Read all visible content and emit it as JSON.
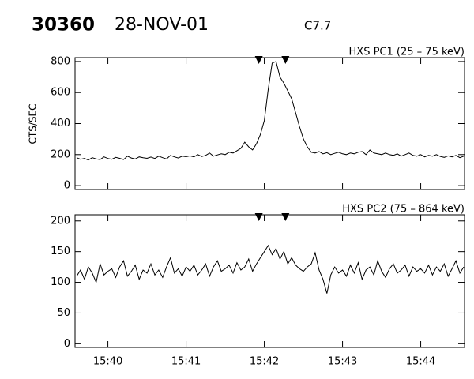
{
  "chart_data": [
    {
      "type": "line",
      "title": "30360",
      "subtitle": "28-NOV-01",
      "annotation": "C7.7",
      "label": "HXS PC1 (25 – 75 keV)",
      "ylabel": "CTS/SEC",
      "color": "#000000",
      "xlim": [
        39.58,
        44.56
      ],
      "ylim": [
        -25,
        825
      ],
      "yticks": [
        0,
        200,
        400,
        600,
        800
      ],
      "markers": [
        41.93,
        42.27
      ],
      "x": [
        39.6,
        39.65,
        39.7,
        39.75,
        39.8,
        39.85,
        39.9,
        39.95,
        40.0,
        40.05,
        40.1,
        40.15,
        40.2,
        40.25,
        40.3,
        40.35,
        40.4,
        40.45,
        40.5,
        40.55,
        40.6,
        40.65,
        40.7,
        40.75,
        40.8,
        40.85,
        40.9,
        40.95,
        41.0,
        41.05,
        41.1,
        41.15,
        41.2,
        41.25,
        41.3,
        41.35,
        41.4,
        41.45,
        41.5,
        41.55,
        41.6,
        41.65,
        41.7,
        41.75,
        41.8,
        41.85,
        41.9,
        41.95,
        42.0,
        42.05,
        42.1,
        42.15,
        42.2,
        42.25,
        42.3,
        42.35,
        42.4,
        42.45,
        42.5,
        42.55,
        42.6,
        42.65,
        42.7,
        42.75,
        42.8,
        42.85,
        42.9,
        42.95,
        43.0,
        43.05,
        43.1,
        43.15,
        43.2,
        43.25,
        43.3,
        43.35,
        43.4,
        43.45,
        43.5,
        43.55,
        43.6,
        43.65,
        43.7,
        43.75,
        43.8,
        43.85,
        43.9,
        43.95,
        44.0,
        44.05,
        44.1,
        44.15,
        44.2,
        44.25,
        44.3,
        44.35,
        44.4,
        44.45,
        44.5,
        44.55
      ],
      "values": [
        180,
        170,
        175,
        165,
        180,
        172,
        168,
        185,
        175,
        170,
        182,
        176,
        168,
        190,
        178,
        172,
        185,
        180,
        176,
        184,
        175,
        190,
        180,
        172,
        195,
        185,
        178,
        190,
        186,
        192,
        185,
        200,
        188,
        195,
        210,
        190,
        198,
        205,
        200,
        215,
        210,
        225,
        240,
        280,
        250,
        230,
        270,
        330,
        420,
        620,
        790,
        800,
        700,
        660,
        610,
        560,
        470,
        380,
        300,
        250,
        215,
        210,
        220,
        205,
        212,
        200,
        208,
        215,
        205,
        200,
        210,
        205,
        215,
        220,
        200,
        230,
        210,
        205,
        200,
        210,
        200,
        195,
        205,
        190,
        200,
        210,
        195,
        190,
        200,
        185,
        195,
        190,
        200,
        188,
        182,
        192,
        185,
        195,
        180,
        190
      ]
    },
    {
      "type": "line",
      "label": "HXS PC2 (75 – 864 keV)",
      "color": "#000000",
      "xlim": [
        39.58,
        44.56
      ],
      "ylim": [
        -6,
        210
      ],
      "yticks": [
        0,
        50,
        100,
        150,
        200
      ],
      "xticks": [
        {
          "value": 40,
          "label": "15:40"
        },
        {
          "value": 41,
          "label": "15:41"
        },
        {
          "value": 42,
          "label": "15:42"
        },
        {
          "value": 43,
          "label": "15:43"
        },
        {
          "value": 44,
          "label": "15:44"
        }
      ],
      "markers": [
        41.93,
        42.27
      ],
      "x": [
        39.6,
        39.65,
        39.7,
        39.75,
        39.8,
        39.85,
        39.9,
        39.95,
        40.0,
        40.05,
        40.1,
        40.15,
        40.2,
        40.25,
        40.3,
        40.35,
        40.4,
        40.45,
        40.5,
        40.55,
        40.6,
        40.65,
        40.7,
        40.75,
        40.8,
        40.85,
        40.9,
        40.95,
        41.0,
        41.05,
        41.1,
        41.15,
        41.2,
        41.25,
        41.3,
        41.35,
        41.4,
        41.45,
        41.5,
        41.55,
        41.6,
        41.65,
        41.7,
        41.75,
        41.8,
        41.85,
        41.9,
        41.95,
        42.0,
        42.05,
        42.1,
        42.15,
        42.2,
        42.25,
        42.3,
        42.35,
        42.4,
        42.45,
        42.5,
        42.55,
        42.6,
        42.65,
        42.7,
        42.75,
        42.8,
        42.85,
        42.9,
        42.95,
        43.0,
        43.05,
        43.1,
        43.15,
        43.2,
        43.25,
        43.3,
        43.35,
        43.4,
        43.45,
        43.5,
        43.55,
        43.6,
        43.65,
        43.7,
        43.75,
        43.8,
        43.85,
        43.9,
        43.95,
        44.0,
        44.05,
        44.1,
        44.15,
        44.2,
        44.25,
        44.3,
        44.35,
        44.4,
        44.45,
        44.5,
        44.55
      ],
      "values": [
        110,
        120,
        105,
        125,
        115,
        100,
        130,
        112,
        118,
        122,
        108,
        125,
        135,
        110,
        118,
        128,
        105,
        120,
        115,
        130,
        112,
        120,
        108,
        125,
        140,
        115,
        122,
        110,
        125,
        118,
        128,
        112,
        120,
        130,
        110,
        125,
        135,
        118,
        122,
        128,
        115,
        132,
        120,
        125,
        138,
        118,
        130,
        140,
        150,
        160,
        145,
        155,
        138,
        150,
        130,
        140,
        128,
        122,
        118,
        125,
        130,
        148,
        120,
        105,
        82,
        112,
        125,
        115,
        120,
        110,
        128,
        115,
        132,
        105,
        120,
        125,
        112,
        135,
        118,
        108,
        122,
        130,
        115,
        120,
        128,
        110,
        125,
        118,
        122,
        115,
        128,
        112,
        125,
        118,
        130,
        110,
        122,
        135,
        115,
        125
      ]
    }
  ]
}
